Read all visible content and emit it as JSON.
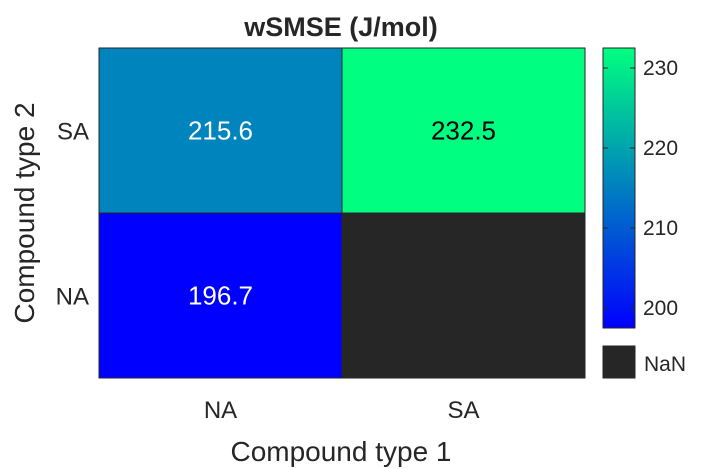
{
  "chart_data": {
    "type": "heatmap",
    "title": "wSMSE (J/mol)",
    "xlabel": "Compound type 1",
    "ylabel": "Compound type 2",
    "x_categories": [
      "NA",
      "SA"
    ],
    "y_categories": [
      "SA",
      "NA"
    ],
    "values": [
      [
        215.6,
        232.5
      ],
      [
        196.7,
        null
      ]
    ],
    "cell_labels": [
      [
        "215.6",
        "232.5"
      ],
      [
        "196.7",
        ""
      ]
    ],
    "colorbar": {
      "range": [
        197.5,
        232.5
      ],
      "ticks": [
        200,
        210,
        220,
        230
      ],
      "tick_labels": [
        "200",
        "210",
        "220",
        "230"
      ],
      "colormap": "winter",
      "color_low": "#0000ff",
      "color_high": "#00ff80"
    },
    "missing": {
      "label": "NaN",
      "color": "#262626"
    },
    "grid": false
  }
}
